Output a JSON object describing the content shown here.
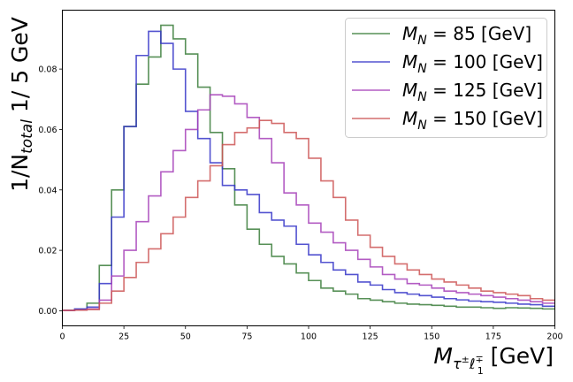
{
  "chart_data": {
    "type": "line",
    "style": "step-histogram",
    "ylabel": {
      "prefix": "1/N",
      "sub": "total",
      "suffix": " 1/ 5 GeV"
    },
    "xlabel": {
      "symbol": "M",
      "sub_main": "τ",
      "sub_sup": "±",
      "sub_l": "ℓ",
      "sub_l_sub": "1",
      "sub_l_sup": "∓",
      "unit": " [GeV]"
    },
    "xlim": [
      0,
      200
    ],
    "ylim": [
      -0.005,
      0.0995
    ],
    "xticks": [
      "0",
      "25",
      "50",
      "75",
      "100",
      "125",
      "150",
      "175",
      "200"
    ],
    "yticks": [
      "0.00",
      "0.02",
      "0.04",
      "0.06",
      "0.08"
    ],
    "bin_width": 5,
    "legend_position": "top-right",
    "series": [
      {
        "name": {
          "sym": "M",
          "sub": "N",
          "eq": " = ",
          "val": " 85",
          "unit": "  [GeV]"
        },
        "color": "#3a7d3a",
        "values": [
          0.0002,
          0.0005,
          0.0025,
          0.015,
          0.04,
          0.061,
          0.075,
          0.084,
          0.0945,
          0.09,
          0.085,
          0.074,
          0.059,
          0.047,
          0.035,
          0.027,
          0.022,
          0.018,
          0.0155,
          0.0125,
          0.01,
          0.0075,
          0.0065,
          0.0055,
          0.004,
          0.0035,
          0.003,
          0.0025,
          0.0022,
          0.002,
          0.0018,
          0.0015,
          0.0012,
          0.0012,
          0.001,
          0.0008,
          0.001,
          0.0009,
          0.0008,
          0.0006
        ]
      },
      {
        "name": {
          "sym": "M",
          "sub": "N",
          "eq": " = ",
          "val": "100",
          "unit": " [GeV]"
        },
        "color": "#3535c8",
        "values": [
          0.0001,
          0.0006,
          0.0012,
          0.009,
          0.031,
          0.061,
          0.0845,
          0.0925,
          0.0885,
          0.08,
          0.066,
          0.057,
          0.049,
          0.0415,
          0.04,
          0.0385,
          0.0325,
          0.03,
          0.028,
          0.022,
          0.0185,
          0.016,
          0.0135,
          0.012,
          0.0095,
          0.0085,
          0.007,
          0.006,
          0.0055,
          0.005,
          0.0045,
          0.004,
          0.0036,
          0.0032,
          0.003,
          0.0028,
          0.0025,
          0.0022,
          0.002,
          0.0015
        ]
      },
      {
        "name": {
          "sym": "M",
          "sub": "N",
          "eq": " = ",
          "val": "125",
          "unit": " [GeV]"
        },
        "color": "#a640b8",
        "values": [
          0.0001,
          0.0003,
          0.0006,
          0.0035,
          0.0115,
          0.02,
          0.0295,
          0.038,
          0.046,
          0.053,
          0.06,
          0.0665,
          0.0715,
          0.071,
          0.0685,
          0.064,
          0.057,
          0.049,
          0.039,
          0.035,
          0.029,
          0.026,
          0.0225,
          0.02,
          0.017,
          0.0145,
          0.012,
          0.0105,
          0.009,
          0.0085,
          0.0075,
          0.0065,
          0.006,
          0.0055,
          0.005,
          0.0045,
          0.004,
          0.0035,
          0.003,
          0.0025
        ]
      },
      {
        "name": {
          "sym": "M",
          "sub": "N",
          "eq": " = ",
          "val": "150",
          "unit": " [GeV]"
        },
        "color": "#cc5555",
        "values": [
          0.0001,
          0.0002,
          0.0004,
          0.0025,
          0.0065,
          0.011,
          0.016,
          0.0205,
          0.0255,
          0.031,
          0.0375,
          0.043,
          0.048,
          0.055,
          0.059,
          0.0605,
          0.063,
          0.062,
          0.059,
          0.057,
          0.0505,
          0.043,
          0.0375,
          0.03,
          0.025,
          0.021,
          0.018,
          0.0155,
          0.0135,
          0.012,
          0.0105,
          0.0095,
          0.0085,
          0.0075,
          0.0065,
          0.006,
          0.0055,
          0.005,
          0.004,
          0.0035
        ]
      }
    ]
  }
}
